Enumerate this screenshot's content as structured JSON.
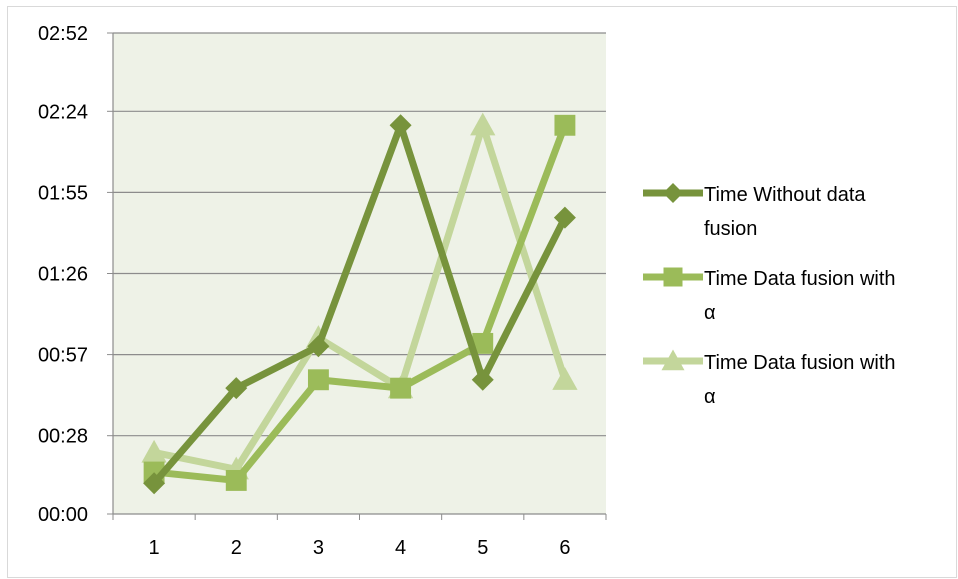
{
  "chart_data": {
    "type": "line",
    "title": "",
    "xlabel": "",
    "ylabel": "",
    "x": [
      "1",
      "2",
      "3",
      "4",
      "5",
      "6"
    ],
    "y_ticks": [
      "00:00",
      "00:28",
      "00:57",
      "01:26",
      "01:55",
      "02:24",
      "02:52"
    ],
    "y_tick_seconds": [
      0,
      28,
      57,
      86,
      115,
      144,
      172
    ],
    "ylim_seconds": [
      0,
      172
    ],
    "grid": "horizontal",
    "plot_background": "#eef2e7",
    "legend_position": "right",
    "series": [
      {
        "name": "Time Without data fusion",
        "name_lines": [
          "Time Without data",
          "fusion"
        ],
        "marker": "diamond",
        "color": "#77933c",
        "values": [
          "00:11",
          "00:45",
          "01:00",
          "02:19",
          "00:48",
          "01:46"
        ],
        "values_seconds": [
          11,
          45,
          60,
          139,
          48,
          106
        ]
      },
      {
        "name": "Time Data fusion with α",
        "name_lines": [
          "Time Data fusion with",
          "α"
        ],
        "marker": "square",
        "color": "#9bbb59",
        "values": [
          "00:15",
          "00:12",
          "00:48",
          "00:45",
          "01:01",
          "02:19"
        ],
        "values_seconds": [
          15,
          12,
          48,
          45,
          61,
          139
        ]
      },
      {
        "name": "Time Data fusion with α",
        "name_lines": [
          "Time Data fusion with",
          "α"
        ],
        "marker": "triangle",
        "color": "#c3d69b",
        "values": [
          "00:22",
          "00:16",
          "01:03",
          "00:45",
          "02:19",
          "00:48"
        ],
        "values_seconds": [
          22,
          16,
          63,
          45,
          139,
          48
        ]
      }
    ]
  }
}
